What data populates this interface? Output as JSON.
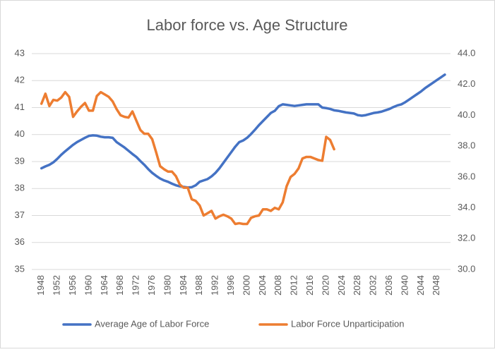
{
  "chart_data": {
    "type": "line",
    "title": "Labor force vs. Age Structure",
    "x": [
      1948,
      1949,
      1950,
      1951,
      1952,
      1953,
      1954,
      1955,
      1956,
      1957,
      1958,
      1959,
      1960,
      1961,
      1962,
      1963,
      1964,
      1965,
      1966,
      1967,
      1968,
      1969,
      1970,
      1971,
      1972,
      1973,
      1974,
      1975,
      1976,
      1977,
      1978,
      1979,
      1980,
      1981,
      1982,
      1983,
      1984,
      1985,
      1986,
      1987,
      1988,
      1989,
      1990,
      1991,
      1992,
      1993,
      1994,
      1995,
      1996,
      1997,
      1998,
      1999,
      2000,
      2001,
      2002,
      2003,
      2004,
      2005,
      2006,
      2007,
      2008,
      2009,
      2010,
      2011,
      2012,
      2013,
      2014,
      2015,
      2016,
      2017,
      2018,
      2019,
      2020,
      2021,
      2022,
      2023,
      2024,
      2025,
      2026,
      2027,
      2028,
      2029,
      2030,
      2031,
      2032,
      2033,
      2034,
      2035,
      2036,
      2037,
      2038,
      2039,
      2040,
      2041,
      2042,
      2043,
      2044,
      2045,
      2046,
      2047,
      2048,
      2049,
      2050
    ],
    "xlim": [
      1946.8,
      2050.9
    ],
    "xticks": [
      1948,
      1952,
      1956,
      1960,
      1964,
      1968,
      1972,
      1976,
      1980,
      1984,
      1988,
      1992,
      1996,
      2000,
      2004,
      2008,
      2012,
      2016,
      2020,
      2024,
      2028,
      2032,
      2036,
      2040,
      2044,
      2048
    ],
    "ylim": [
      35,
      43
    ],
    "yticks": [
      35,
      36,
      37,
      38,
      39,
      40,
      41,
      42,
      43
    ],
    "y2lim": [
      30,
      44
    ],
    "y2ticks": [
      {
        "value": 30,
        "label": "30.0"
      },
      {
        "value": 32,
        "label": "32.0"
      },
      {
        "value": 34,
        "label": "34.0"
      },
      {
        "value": 36,
        "label": "36.0"
      },
      {
        "value": 38,
        "label": "38.0"
      },
      {
        "value": 40,
        "label": "40.0"
      },
      {
        "value": 42,
        "label": "42.0"
      },
      {
        "value": 44,
        "label": "44.0"
      }
    ],
    "grid": true,
    "legend": "bottom",
    "series": [
      {
        "name": "Average Age of Labor Force",
        "color": "#4472c4",
        "axis": "y",
        "values": [
          38.75,
          38.82,
          38.88,
          38.97,
          39.1,
          39.25,
          39.38,
          39.5,
          39.62,
          39.72,
          39.8,
          39.88,
          39.95,
          39.97,
          39.96,
          39.92,
          39.9,
          39.9,
          39.88,
          39.72,
          39.62,
          39.52,
          39.4,
          39.28,
          39.17,
          39.02,
          38.88,
          38.72,
          38.58,
          38.47,
          38.37,
          38.3,
          38.25,
          38.18,
          38.12,
          38.08,
          38.06,
          38.04,
          38.05,
          38.12,
          38.25,
          38.3,
          38.35,
          38.45,
          38.58,
          38.75,
          38.95,
          39.15,
          39.35,
          39.55,
          39.72,
          39.78,
          39.88,
          40.02,
          40.18,
          40.35,
          40.5,
          40.65,
          40.8,
          40.88,
          41.05,
          41.12,
          41.1,
          41.08,
          41.06,
          41.08,
          41.1,
          41.12,
          41.12,
          41.12,
          41.12,
          41.0,
          40.98,
          40.95,
          40.9,
          40.88,
          40.85,
          40.82,
          40.8,
          40.78,
          40.72,
          40.7,
          40.72,
          40.76,
          40.8,
          40.82,
          40.85,
          40.9,
          40.95,
          41.02,
          41.08,
          41.12,
          41.2,
          41.3,
          41.4,
          41.5,
          41.6,
          41.72,
          41.82,
          41.92,
          42.02,
          42.12,
          42.22
        ]
      },
      {
        "name": "Labor Force Unparticipation",
        "color": "#ed7d31",
        "axis": "y2",
        "values": [
          40.75,
          41.4,
          40.6,
          41.0,
          40.95,
          41.15,
          41.5,
          41.2,
          39.9,
          40.25,
          40.55,
          40.8,
          40.3,
          40.3,
          41.25,
          41.5,
          41.35,
          41.2,
          40.9,
          40.4,
          40.0,
          39.9,
          39.85,
          40.25,
          39.65,
          39.05,
          38.8,
          38.8,
          38.45,
          37.6,
          36.7,
          36.5,
          36.35,
          36.35,
          36.05,
          35.5,
          35.3,
          35.3,
          34.55,
          34.45,
          34.15,
          33.5,
          33.65,
          33.8,
          33.3,
          33.45,
          33.55,
          33.45,
          33.3,
          32.95,
          33.0,
          32.95,
          32.95,
          33.35,
          33.45,
          33.5,
          33.9,
          33.9,
          33.8,
          34.0,
          33.9,
          34.35,
          35.4,
          36.0,
          36.2,
          36.55,
          37.2,
          37.3,
          37.3,
          37.2,
          37.1,
          37.05,
          38.6,
          38.4,
          37.8,
          null,
          null,
          null,
          null,
          null,
          null,
          null,
          null,
          null,
          null,
          null,
          null,
          null,
          null,
          null,
          null,
          null,
          null,
          null,
          null,
          null,
          null,
          null,
          null,
          null,
          null,
          null,
          null
        ]
      }
    ]
  }
}
